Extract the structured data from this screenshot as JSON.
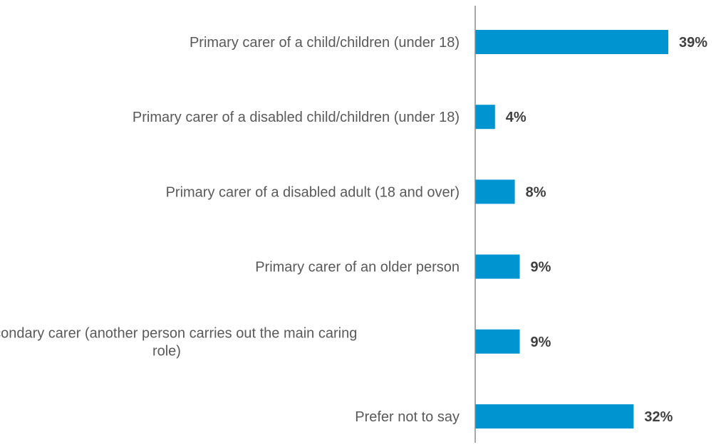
{
  "chart_data": {
    "type": "bar",
    "orientation": "horizontal",
    "categories": [
      "Primary carer of a child/children (under 18)",
      "Primary carer of a disabled child/children (under 18)",
      "Primary carer of a disabled adult (18 and over)",
      "Primary carer of an older person",
      "Secondary carer (another person carries out the main caring role)",
      "Prefer not to say"
    ],
    "category_label_lines": [
      [
        "Primary carer of a child/children (under 18)"
      ],
      [
        "Primary carer of a disabled child/children (under 18)"
      ],
      [
        "Primary carer of a disabled adult (18 and over)"
      ],
      [
        "Primary carer of an older person"
      ],
      [
        "Secondary carer (another person carries out the main caring",
        "role)"
      ],
      [
        "Prefer not to say"
      ]
    ],
    "values": [
      39,
      4,
      8,
      9,
      9,
      32
    ],
    "value_labels": [
      "39%",
      "4%",
      "8%",
      "9%",
      "9%",
      "32%"
    ],
    "unit": "%",
    "xlim": [
      0,
      40
    ],
    "grid": false,
    "bar_color": "#0095D0",
    "axis_color": "#8C8C8C",
    "title": "",
    "xlabel": "",
    "ylabel": ""
  }
}
